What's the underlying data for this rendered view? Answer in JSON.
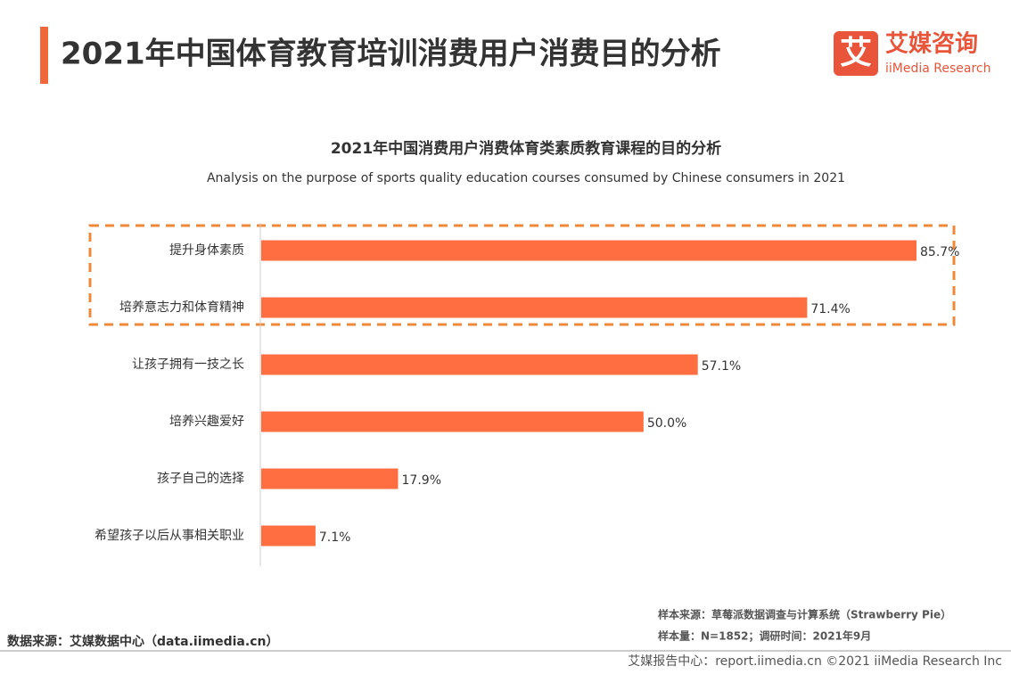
{
  "header": {
    "title": "2021年中国体育教育培训消费用户消费目的分析",
    "logo_icon": "艾",
    "logo_name": "艾媒咨询",
    "logo_sub": "iiMedia Research"
  },
  "chart_data": {
    "type": "bar",
    "orientation": "horizontal",
    "title": "2021年中国消费用户消费体育类素质教育课程的目的分析",
    "subtitle": "Analysis on the purpose of sports quality education courses consumed by Chinese consumers in 2021",
    "categories": [
      "提升身体素质",
      "培养意志力和体育精神",
      "让孩子拥有一技之长",
      "培养兴趣爱好",
      "孩子自己的选择",
      "希望孩子以后从事相关职业"
    ],
    "values": [
      85.7,
      71.4,
      57.1,
      50.0,
      17.9,
      7.1
    ],
    "value_labels": [
      "85.7%",
      "71.4%",
      "57.1%",
      "50.0%",
      "17.9%",
      "7.1%"
    ],
    "color": "#ff6e40"
  },
  "footer": {
    "source": "数据来源：艾媒数据中心（data.iimedia.cn）",
    "sample_source": "样本来源：草莓派数据调查与计算系统（Strawberry Pie）",
    "sample_size": "样本量：N=1852；调研时间：2021年9月",
    "copyright": "艾媒报告中心：report.iimedia.cn ©2021 iiMedia Research Inc"
  }
}
